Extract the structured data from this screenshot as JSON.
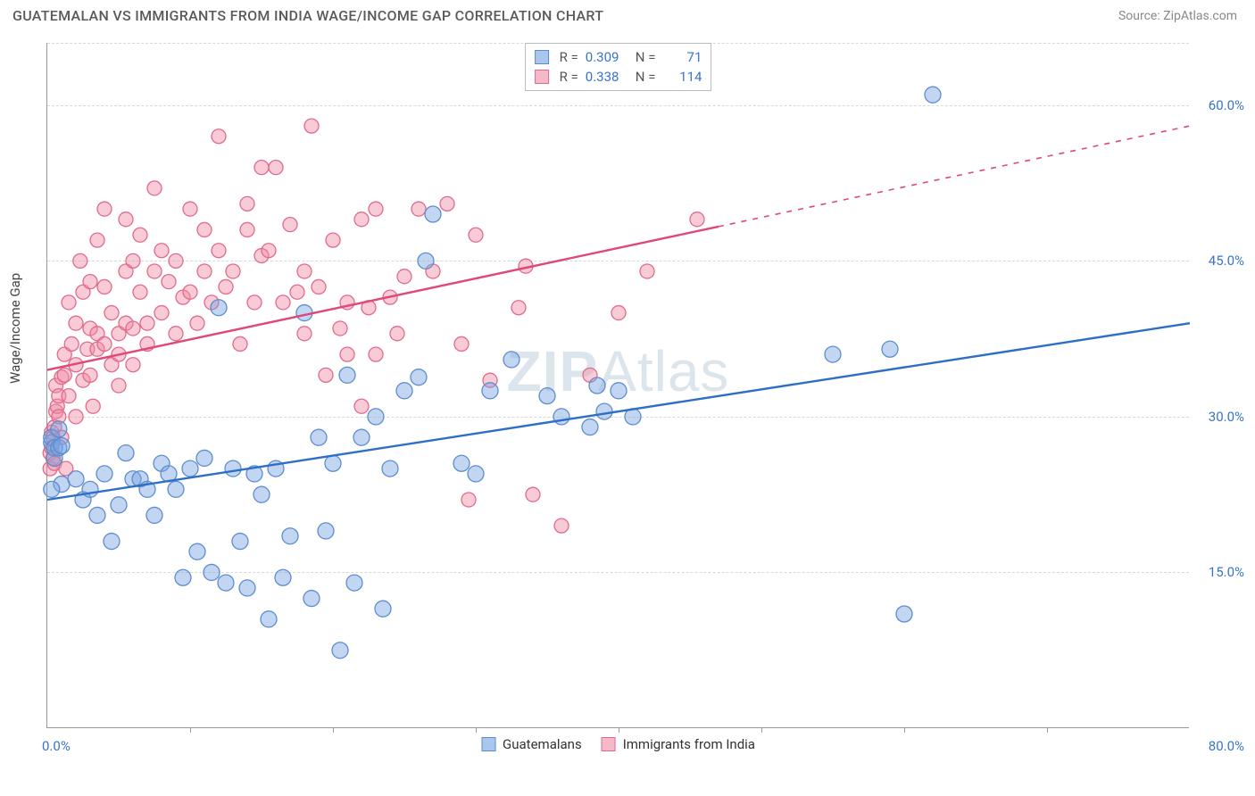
{
  "header": {
    "title": "GUATEMALAN VS IMMIGRANTS FROM INDIA WAGE/INCOME GAP CORRELATION CHART",
    "source": "Source: ZipAtlas.com"
  },
  "chart": {
    "type": "scatter",
    "ylabel": "Wage/Income Gap",
    "watermark": "ZIPAtlas",
    "background_color": "#ffffff",
    "grid_color": "#d8d8d8",
    "axis_color": "#999999",
    "tick_label_color": "#3874c9",
    "tick_fontsize": 15,
    "xlim": [
      0,
      80
    ],
    "ylim": [
      0,
      66
    ],
    "xticks": [
      0,
      80
    ],
    "xtick_labels": [
      "0.0%",
      "80.0%"
    ],
    "xtick_minor": [
      10,
      20,
      30,
      40,
      50,
      60,
      70
    ],
    "yticks": [
      15,
      30,
      45,
      60
    ],
    "ytick_labels": [
      "15.0%",
      "30.0%",
      "45.0%",
      "60.0%"
    ],
    "ygrid": [
      15,
      30,
      45,
      60,
      66
    ],
    "series": [
      {
        "key": "guatemalans",
        "name": "Guatemalans",
        "R": "0.309",
        "N": "71",
        "marker_color_fill": "rgba(120,165,225,0.45)",
        "marker_color_stroke": "#5d8dd0",
        "marker_radius": 9,
        "trend_color": "#2d6fc7",
        "trend_width": 2.4,
        "trend": {
          "x1": 0,
          "y1": 22,
          "x2": 80,
          "y2": 39
        },
        "swatch_fill": "#aac6ec",
        "swatch_border": "#5d8dd0",
        "points": [
          [
            0.3,
            27.5
          ],
          [
            0.3,
            28
          ],
          [
            0.5,
            26
          ],
          [
            0.5,
            27
          ],
          [
            0.8,
            27
          ],
          [
            0.8,
            28.8
          ],
          [
            1,
            23.5
          ],
          [
            1,
            27.2
          ],
          [
            0.3,
            23
          ],
          [
            2,
            24
          ],
          [
            2.5,
            22
          ],
          [
            3,
            23
          ],
          [
            3.5,
            20.5
          ],
          [
            4,
            24.5
          ],
          [
            4.5,
            18
          ],
          [
            5,
            21.5
          ],
          [
            5.5,
            26.5
          ],
          [
            6,
            24
          ],
          [
            6.5,
            24
          ],
          [
            7,
            23
          ],
          [
            7.5,
            20.5
          ],
          [
            8,
            25.5
          ],
          [
            8.5,
            24.5
          ],
          [
            9,
            23
          ],
          [
            9.5,
            14.5
          ],
          [
            10,
            25
          ],
          [
            10.5,
            17
          ],
          [
            11,
            26
          ],
          [
            11.5,
            15
          ],
          [
            12,
            40.5
          ],
          [
            12.5,
            14
          ],
          [
            13,
            25
          ],
          [
            13.5,
            18
          ],
          [
            14,
            13.5
          ],
          [
            14.5,
            24.5
          ],
          [
            15,
            22.5
          ],
          [
            15.5,
            10.5
          ],
          [
            16,
            25
          ],
          [
            16.5,
            14.5
          ],
          [
            17,
            18.5
          ],
          [
            18,
            40
          ],
          [
            18.5,
            12.5
          ],
          [
            19,
            28
          ],
          [
            19.5,
            19
          ],
          [
            20,
            25.5
          ],
          [
            20.5,
            7.5
          ],
          [
            21,
            34
          ],
          [
            21.5,
            14
          ],
          [
            22,
            28
          ],
          [
            23,
            30
          ],
          [
            23.5,
            11.5
          ],
          [
            24,
            25
          ],
          [
            25,
            32.5
          ],
          [
            26,
            33.8
          ],
          [
            26.5,
            45
          ],
          [
            27,
            49.5
          ],
          [
            29,
            25.5
          ],
          [
            30,
            24.5
          ],
          [
            31,
            32.5
          ],
          [
            32.5,
            35.5
          ],
          [
            35,
            32
          ],
          [
            36,
            30
          ],
          [
            38,
            29
          ],
          [
            38.5,
            33
          ],
          [
            39,
            30.5
          ],
          [
            40,
            32.5
          ],
          [
            41,
            30
          ],
          [
            55,
            36
          ],
          [
            59,
            36.5
          ],
          [
            60,
            11
          ],
          [
            62,
            61
          ]
        ]
      },
      {
        "key": "india",
        "name": "Immigrants from India",
        "R": "0.338",
        "N": "114",
        "marker_color_fill": "rgba(240,140,165,0.45)",
        "marker_color_stroke": "#e06b8c",
        "marker_radius": 8,
        "trend_color": "#e04876",
        "trend_width": 2.4,
        "trend": {
          "x1": 0,
          "y1": 34.5,
          "x2": 80,
          "y2": 58
        },
        "trend_dash_after_x": 47,
        "swatch_fill": "#f6b9c9",
        "swatch_border": "#e06b8c",
        "points": [
          [
            0.2,
            25
          ],
          [
            0.2,
            26.5
          ],
          [
            0.3,
            27
          ],
          [
            0.3,
            28.5
          ],
          [
            0.4,
            26
          ],
          [
            0.4,
            28
          ],
          [
            0.5,
            25.5
          ],
          [
            0.5,
            29
          ],
          [
            0.6,
            30.5
          ],
          [
            0.6,
            33
          ],
          [
            0.7,
            31
          ],
          [
            0.8,
            30
          ],
          [
            0.8,
            32
          ],
          [
            1,
            33.8
          ],
          [
            1,
            28
          ],
          [
            1.2,
            34
          ],
          [
            1.3,
            25
          ],
          [
            1.2,
            36
          ],
          [
            1.5,
            41
          ],
          [
            1.5,
            32
          ],
          [
            1.7,
            37
          ],
          [
            2,
            39
          ],
          [
            2,
            35
          ],
          [
            2,
            30
          ],
          [
            2.3,
            45
          ],
          [
            2.5,
            42
          ],
          [
            2.5,
            33.5
          ],
          [
            2.8,
            36.5
          ],
          [
            3,
            43
          ],
          [
            3,
            38.5
          ],
          [
            3,
            34
          ],
          [
            3.2,
            31
          ],
          [
            3.5,
            47
          ],
          [
            3.5,
            38
          ],
          [
            3.5,
            36.5
          ],
          [
            4,
            50
          ],
          [
            4,
            42.5
          ],
          [
            4,
            37
          ],
          [
            4.5,
            35
          ],
          [
            4.5,
            40
          ],
          [
            5,
            38
          ],
          [
            5,
            36
          ],
          [
            5,
            33
          ],
          [
            5.5,
            49
          ],
          [
            5.5,
            44
          ],
          [
            5.5,
            39
          ],
          [
            6,
            45
          ],
          [
            6,
            38.5
          ],
          [
            6,
            35
          ],
          [
            6.5,
            42
          ],
          [
            6.5,
            47.5
          ],
          [
            7,
            39
          ],
          [
            7,
            37
          ],
          [
            7.5,
            52
          ],
          [
            7.5,
            44
          ],
          [
            8,
            40
          ],
          [
            8,
            46
          ],
          [
            8.5,
            43
          ],
          [
            9,
            38
          ],
          [
            9,
            45
          ],
          [
            9.5,
            41.5
          ],
          [
            10,
            50
          ],
          [
            10,
            42
          ],
          [
            10.5,
            39
          ],
          [
            11,
            48
          ],
          [
            11,
            44
          ],
          [
            11.5,
            41
          ],
          [
            12,
            46
          ],
          [
            12,
            57
          ],
          [
            12.5,
            42.5
          ],
          [
            13,
            44
          ],
          [
            13.5,
            37
          ],
          [
            14,
            48
          ],
          [
            14,
            50.5
          ],
          [
            14.5,
            41
          ],
          [
            15,
            54
          ],
          [
            15,
            45.5
          ],
          [
            15.5,
            46
          ],
          [
            16,
            54
          ],
          [
            16.5,
            41
          ],
          [
            17,
            48.5
          ],
          [
            17.5,
            42
          ],
          [
            18,
            44
          ],
          [
            18,
            38
          ],
          [
            18.5,
            58
          ],
          [
            19,
            42.5
          ],
          [
            19.5,
            34
          ],
          [
            20,
            47
          ],
          [
            20.5,
            38.5
          ],
          [
            21,
            41
          ],
          [
            21,
            36
          ],
          [
            22,
            49
          ],
          [
            22,
            31
          ],
          [
            22.5,
            40.5
          ],
          [
            23,
            50
          ],
          [
            23,
            36
          ],
          [
            24,
            41.5
          ],
          [
            24.5,
            38
          ],
          [
            25,
            43.5
          ],
          [
            26,
            50
          ],
          [
            27,
            44
          ],
          [
            28,
            50.5
          ],
          [
            29,
            37
          ],
          [
            29.5,
            22
          ],
          [
            30,
            47.5
          ],
          [
            31,
            33.5
          ],
          [
            33,
            40.5
          ],
          [
            33.5,
            44.5
          ],
          [
            34,
            22.5
          ],
          [
            36,
            19.5
          ],
          [
            38,
            34
          ],
          [
            40,
            40
          ],
          [
            42,
            44
          ],
          [
            45.5,
            49
          ]
        ]
      }
    ]
  }
}
